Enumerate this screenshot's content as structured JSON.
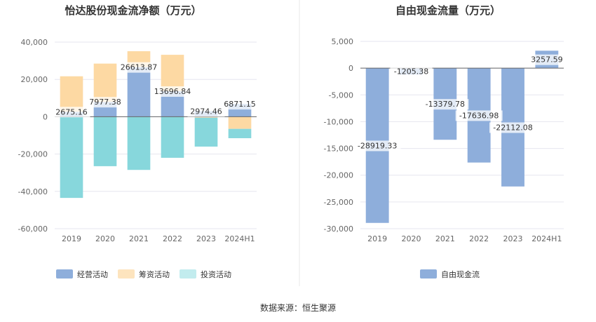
{
  "source": "数据来源：恒生聚源",
  "colors": {
    "operating": "#8eaedb",
    "financing": "#fdd9a3",
    "investing": "#87d7dc",
    "investing_legend": "#c2ecee",
    "fcf": "#8eaedb",
    "grid": "#e6e6ef",
    "divider": "#e8e8e8"
  },
  "chart_data": [
    {
      "type": "bar",
      "stacked": true,
      "title": "怡达股份现金流净额（万元）",
      "categories": [
        "2019",
        "2020",
        "2021",
        "2022",
        "2023",
        "2024H1"
      ],
      "yticks": [
        "40,000",
        "20,000",
        "0",
        "-20,000",
        "-40,000",
        "-60,000"
      ],
      "ylim": [
        -60000,
        40000
      ],
      "series": [
        {
          "name": "经营活动",
          "key": "operating",
          "values": [
            2675.16,
            7977.38,
            26613.87,
            13696.84,
            2974.46,
            6871.15
          ]
        },
        {
          "name": "筹资活动",
          "key": "financing",
          "values": [
            19000,
            20500,
            8500,
            19500,
            -500,
            -6500
          ]
        },
        {
          "name": "投资活动",
          "key": "investing",
          "values": [
            -43500,
            -26500,
            -28500,
            -22000,
            -15500,
            -5000
          ]
        }
      ],
      "data_labels": [
        "2675.16",
        "7977.38",
        "26613.87",
        "13696.84",
        "2974.46",
        "6871.15"
      ],
      "legend": [
        "经营活动",
        "筹资活动",
        "投资活动"
      ]
    },
    {
      "type": "bar",
      "title": "自由现金流量（万元）",
      "categories": [
        "2019",
        "2020",
        "2021",
        "2022",
        "2023",
        "2024H1"
      ],
      "yticks": [
        "5,000",
        "0",
        "-5,000",
        "-10,000",
        "-15,000",
        "-20,000",
        "-25,000",
        "-30,000"
      ],
      "ylim": [
        -30000,
        5000
      ],
      "series": [
        {
          "name": "自由现金流",
          "key": "fcf",
          "values": [
            -28919.33,
            -1205.38,
            -13379.78,
            -17636.98,
            -22112.08,
            3257.59
          ]
        }
      ],
      "data_labels": [
        "-28919.33",
        "-1205.38",
        "-13379.78",
        "-17636.98",
        "-22112.08",
        "3257.59"
      ],
      "legend": [
        "自由现金流"
      ]
    }
  ]
}
